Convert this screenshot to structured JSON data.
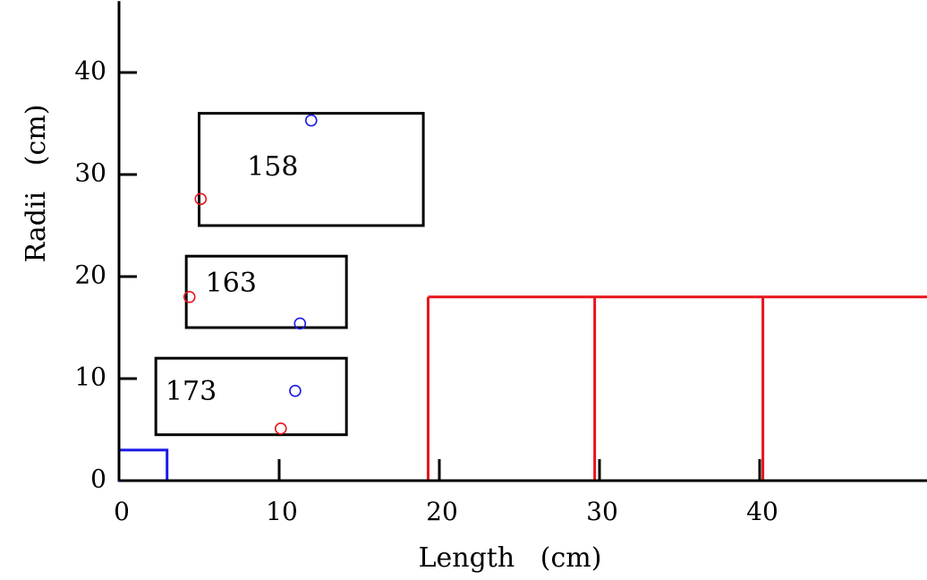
{
  "chart_data": {
    "type": "scatter",
    "xlabel": "Length   (cm)",
    "ylabel": "Radii   (cm)",
    "xlim": [
      0,
      50.5
    ],
    "ylim": [
      0,
      47
    ],
    "x_ticks": [
      0,
      10,
      20,
      30,
      40
    ],
    "y_ticks": [
      0,
      10,
      20,
      30,
      40
    ],
    "grid": false,
    "colors": {
      "axis": "#000000",
      "red": "#e8141c",
      "blue": "#1a1ae6"
    },
    "boxes": [
      {
        "label": "158",
        "x0": 5.0,
        "x1": 19.0,
        "y0": 25.0,
        "y1": 36.0,
        "label_x": 9.6,
        "label_y": 30.6,
        "color": "#000000"
      },
      {
        "label": "163",
        "x0": 4.2,
        "x1": 14.2,
        "y0": 15.0,
        "y1": 22.0,
        "label_x": 7.0,
        "label_y": 19.2,
        "color": "#000000"
      },
      {
        "label": "173",
        "x0": 2.3,
        "x1": 14.2,
        "y0": 4.5,
        "y1": 12.0,
        "label_x": 4.5,
        "label_y": 8.6,
        "color": "#000000"
      },
      {
        "label": "",
        "x0": 0.0,
        "x1": 3.0,
        "y0": 0.0,
        "y1": 3.0,
        "color": "#1a1ae6"
      }
    ],
    "series": [
      {
        "color": "#e8141c",
        "points": [
          {
            "x": 5.1,
            "y": 27.6
          },
          {
            "x": 4.4,
            "y": 18.0
          },
          {
            "x": 10.1,
            "y": 5.1
          }
        ]
      },
      {
        "color": "#1a1ae6",
        "points": [
          {
            "x": 12.0,
            "y": 35.3
          },
          {
            "x": 11.3,
            "y": 15.4
          },
          {
            "x": 11.0,
            "y": 8.8
          }
        ]
      }
    ],
    "red_lines": {
      "y": 18.0,
      "x_start": 19.3,
      "x_end": 50.5,
      "verticals": [
        19.3,
        29.7,
        40.2
      ],
      "color": "#e8141c"
    }
  }
}
